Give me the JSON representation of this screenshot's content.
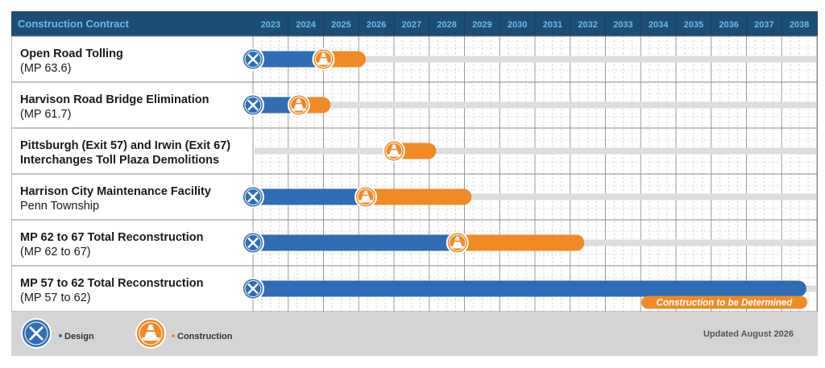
{
  "header": {
    "title": "Construction Contract",
    "years": [
      "2023",
      "2024",
      "2025",
      "2026",
      "2027",
      "2028",
      "2029",
      "2030",
      "2031",
      "2032",
      "2033",
      "2034",
      "2035",
      "2036",
      "2037",
      "2038"
    ]
  },
  "rows": [
    {
      "label1": "Open Road Tolling",
      "label2": "(MP 63.6)",
      "bold2": false
    },
    {
      "label1": "Harvison Road Bridge Elimination",
      "label2": "(MP 61.7)",
      "bold2": false
    },
    {
      "label1": "Pittsburgh (Exit 57) and Irwin (Exit 67)",
      "label2": "Interchanges Toll Plaza Demolitions",
      "bold2": true
    },
    {
      "label1": "Harrison City Maintenance Facility",
      "label2": "Penn Township",
      "bold2": false
    },
    {
      "label1": "MP 62 to 67 Total Reconstruction",
      "label2": "(MP 62 to 67)",
      "bold2": false
    },
    {
      "label1": "MP 57 to 62 Total Reconstruction",
      "label2": "(MP 57 to 62)",
      "bold2": false
    }
  ],
  "chart_data": {
    "type": "gantt",
    "title": "Construction Contract",
    "x_range": [
      2023,
      2038
    ],
    "tasks": [
      {
        "name": "Open Road Tolling",
        "design": [
          2023,
          2025.0
        ],
        "construction": [
          2025.0,
          2026.2
        ]
      },
      {
        "name": "Harvison Road Bridge Elimination",
        "design": [
          2023,
          2024.3
        ],
        "construction": [
          2024.3,
          2025.2
        ]
      },
      {
        "name": "Pittsburgh (Exit 57) and Irwin (Exit 67) Interchanges Toll Plaza Demolitions",
        "design": null,
        "construction": [
          2027.0,
          2028.2
        ]
      },
      {
        "name": "Harrison City Maintenance Facility",
        "design": [
          2023,
          2026.2
        ],
        "construction": [
          2026.2,
          2029.2
        ]
      },
      {
        "name": "MP 62 to 67 Total Reconstruction",
        "design": [
          2023,
          2028.8
        ],
        "construction": [
          2028.8,
          2032.4
        ]
      },
      {
        "name": "MP 57 to 62 Total Reconstruction",
        "design": [
          2023,
          2038.7
        ],
        "construction": null,
        "construction_note": "Construction to be Determined"
      }
    ],
    "legend": [
      {
        "label": "Design",
        "color": "#2f6db5"
      },
      {
        "label": "Construction",
        "color": "#f08a24"
      }
    ]
  },
  "legend": {
    "design_label": "Design",
    "construction_label": "Construction"
  },
  "footer": {
    "updated": "Updated August 2026"
  },
  "colors": {
    "header": "#1d4d73",
    "header_text": "#6fb7e6",
    "design": "#2f6db5",
    "construction": "#f08a24",
    "track": "#dddddd",
    "footer": "#d4d4d4"
  }
}
